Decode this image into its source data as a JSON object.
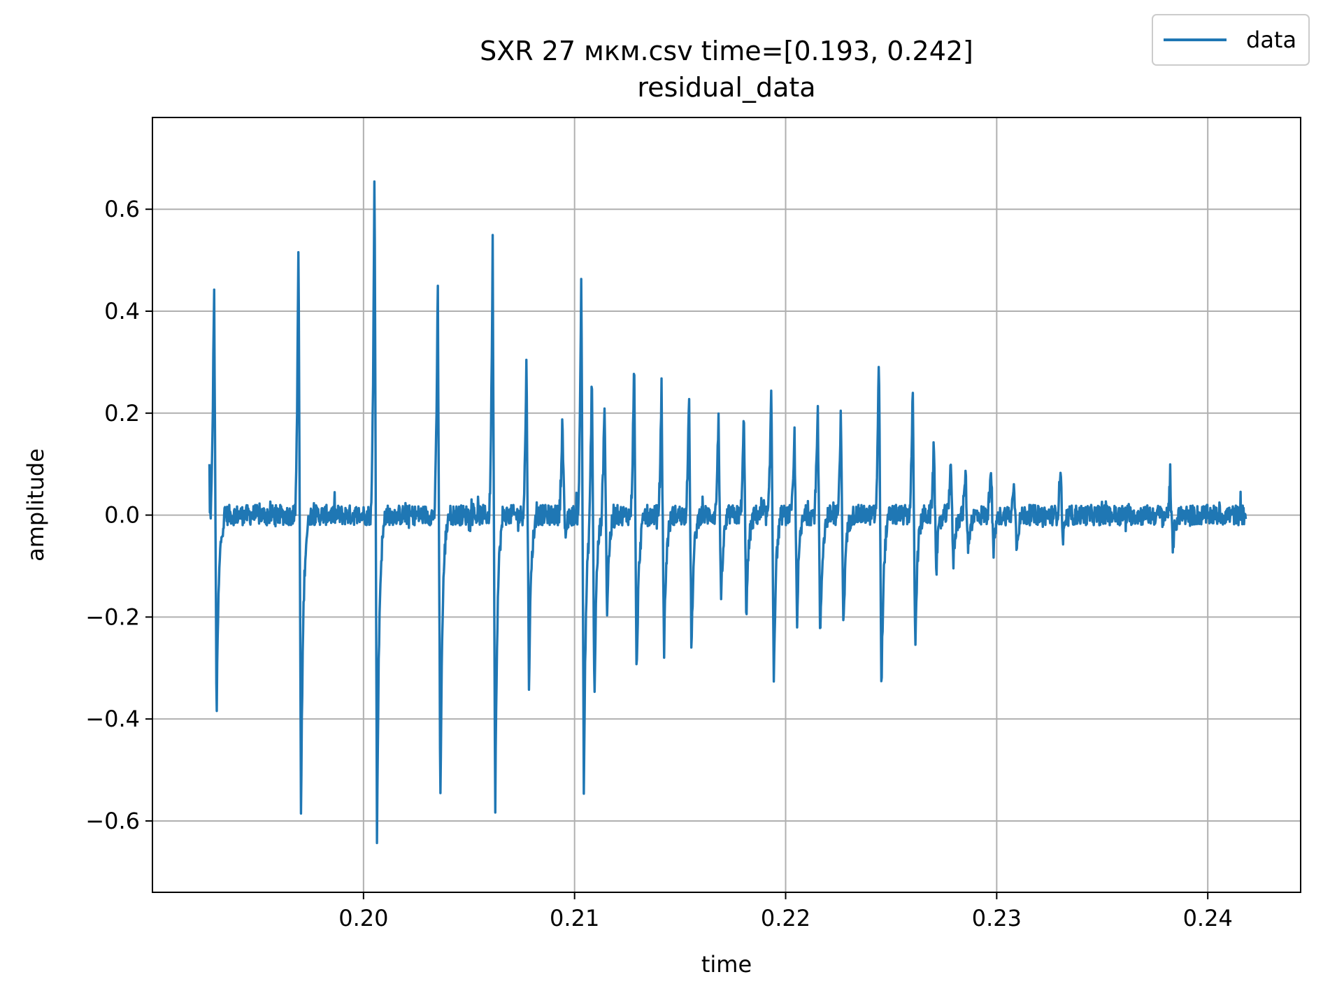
{
  "chart_data": {
    "type": "line",
    "title": "SXR 27 мкм.csv time=[0.193, 0.242]",
    "subtitle": "residual_data",
    "xlabel": "time",
    "ylabel": "amplitude",
    "xlim": [
      0.19,
      0.2444
    ],
    "ylim": [
      -0.74,
      0.78
    ],
    "xticks": [
      0.2,
      0.21,
      0.22,
      0.23,
      0.24
    ],
    "xtick_labels": [
      "0.20",
      "0.21",
      "0.22",
      "0.23",
      "0.24"
    ],
    "yticks": [
      -0.6,
      -0.4,
      -0.2,
      0.0,
      0.2,
      0.4,
      0.6
    ],
    "ytick_labels": [
      "−0.6",
      "−0.4",
      "−0.2",
      "0.0",
      "0.2",
      "0.4",
      "0.6"
    ],
    "grid": true,
    "legend_position": "top-right",
    "series": [
      {
        "name": "data",
        "color": "#1f77b4",
        "x_range": [
          0.1927,
          0.2418
        ],
        "baseline_noise": 0.02,
        "events": [
          {
            "t": 0.19292,
            "peak": 0.47,
            "trough": -0.41
          },
          {
            "t": 0.19692,
            "peak": 0.55,
            "trough": -0.61
          },
          {
            "t": 0.20052,
            "peak": 0.71,
            "trough": -0.66
          },
          {
            "t": 0.20352,
            "peak": 0.46,
            "trough": -0.59
          },
          {
            "t": 0.20612,
            "peak": 0.54,
            "trough": -0.59
          },
          {
            "t": 0.20772,
            "peak": 0.31,
            "trough": -0.34
          },
          {
            "t": 0.20942,
            "peak": 0.19,
            "trough": -0.05
          },
          {
            "t": 0.21032,
            "peak": 0.49,
            "trough": -0.55
          },
          {
            "t": 0.21082,
            "peak": 0.29,
            "trough": -0.38
          },
          {
            "t": 0.21142,
            "peak": 0.23,
            "trough": -0.2
          },
          {
            "t": 0.21282,
            "peak": 0.32,
            "trough": -0.34
          },
          {
            "t": 0.21412,
            "peak": 0.25,
            "trough": -0.28
          },
          {
            "t": 0.21542,
            "peak": 0.25,
            "trough": -0.28
          },
          {
            "t": 0.21682,
            "peak": 0.2,
            "trough": -0.19
          },
          {
            "t": 0.21802,
            "peak": 0.2,
            "trough": -0.21
          },
          {
            "t": 0.21932,
            "peak": 0.26,
            "trough": -0.33
          },
          {
            "t": 0.22042,
            "peak": 0.16,
            "trough": -0.21
          },
          {
            "t": 0.22152,
            "peak": 0.23,
            "trough": -0.26
          },
          {
            "t": 0.22262,
            "peak": 0.21,
            "trough": -0.24
          },
          {
            "t": 0.22442,
            "peak": 0.33,
            "trough": -0.36
          },
          {
            "t": 0.22602,
            "peak": 0.25,
            "trough": -0.27
          },
          {
            "t": 0.22702,
            "peak": 0.14,
            "trough": -0.11
          },
          {
            "t": 0.22782,
            "peak": 0.12,
            "trough": -0.1
          },
          {
            "t": 0.22852,
            "peak": 0.09,
            "trough": -0.07
          },
          {
            "t": 0.22972,
            "peak": 0.11,
            "trough": -0.08
          },
          {
            "t": 0.23082,
            "peak": 0.07,
            "trough": -0.06
          },
          {
            "t": 0.23302,
            "peak": 0.1,
            "trough": -0.06
          },
          {
            "t": 0.23822,
            "peak": 0.06,
            "trough": -0.07
          }
        ]
      }
    ]
  }
}
